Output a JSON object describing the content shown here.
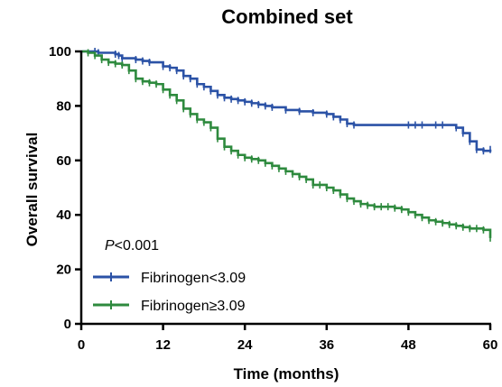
{
  "chart_data": {
    "type": "line",
    "title": "Combined set",
    "xlabel": "Time (months)",
    "ylabel": "Overall survival",
    "xlim": [
      0,
      60
    ],
    "ylim": [
      0,
      100
    ],
    "xticks": [
      0,
      12,
      24,
      36,
      48,
      60
    ],
    "yticks": [
      0,
      20,
      40,
      60,
      80,
      100
    ],
    "grid": false,
    "legend_position": "bottom-left",
    "annotation": {
      "prefix": "P",
      "text": "<0.001"
    },
    "series": [
      {
        "name": "Fibrinogen<3.09",
        "color": "#2b52a6",
        "step": true,
        "x": [
          0,
          2,
          2.5,
          5,
          5.5,
          6,
          8,
          9,
          10,
          12,
          13,
          14,
          15,
          16,
          17,
          18,
          19,
          20,
          21,
          22,
          23,
          24,
          25,
          26,
          27,
          28,
          30,
          32,
          34,
          36,
          37,
          38,
          39,
          40,
          48,
          49,
          50,
          52,
          53,
          55,
          56,
          57,
          58,
          59,
          60
        ],
        "y": [
          100,
          100,
          99.5,
          99,
          98.5,
          97.5,
          97,
          96.5,
          96,
          94.5,
          94,
          93,
          91,
          90,
          88,
          87,
          85.5,
          84,
          83,
          82.5,
          82,
          81.5,
          81,
          80.5,
          80,
          79.5,
          78.5,
          78,
          77.5,
          77,
          76,
          75,
          73.5,
          73,
          73,
          73,
          73,
          73,
          73,
          72,
          70,
          67,
          64,
          63.5,
          64
        ]
      },
      {
        "name": "Fibrinogen≥3.09",
        "color": "#2e8a3e",
        "step": true,
        "x": [
          0,
          1,
          2,
          3,
          4,
          5,
          6,
          7,
          8,
          9,
          10,
          11,
          12,
          13,
          14,
          15,
          16,
          17,
          18,
          19,
          20,
          21,
          22,
          23,
          24,
          25,
          26,
          27,
          28,
          29,
          30,
          31,
          32,
          33,
          34,
          35,
          36,
          37,
          38,
          39,
          40,
          41,
          42,
          43,
          44,
          45,
          46,
          47,
          48,
          49,
          50,
          51,
          52,
          53,
          54,
          55,
          56,
          57,
          58,
          59,
          60
        ],
        "y": [
          100,
          99.5,
          98.5,
          97,
          96,
          95.5,
          95,
          93,
          90,
          89,
          88.5,
          88,
          86,
          84,
          82,
          79,
          77,
          75,
          74,
          72,
          68,
          65,
          63.5,
          62,
          61,
          60.5,
          60,
          59,
          58,
          57,
          56,
          55,
          54,
          53,
          51,
          51,
          50,
          49,
          47.5,
          46,
          45,
          44,
          43.5,
          43,
          43,
          43,
          42.5,
          42,
          41,
          40,
          39,
          38,
          37.5,
          37,
          36.5,
          36,
          35.5,
          35,
          35,
          34.5,
          31.5
        ]
      }
    ]
  }
}
